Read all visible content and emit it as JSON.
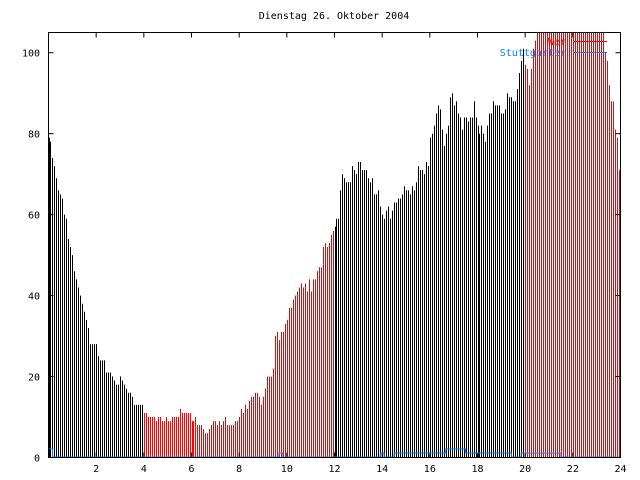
{
  "chart_data": {
    "type": "bar",
    "title": "Dienstag 26. Oktober 2004",
    "xlabel": "",
    "ylabel": "",
    "xlim": [
      0,
      24
    ],
    "ylim": [
      0,
      105
    ],
    "x_ticks": [
      "2",
      "4",
      "6",
      "8",
      "10",
      "12",
      "14",
      "16",
      "18",
      "20",
      "22",
      "24"
    ],
    "y_ticks": [
      "0",
      "20",
      "40",
      "60",
      "80",
      "100"
    ],
    "grid": false,
    "legend_position": "top-right",
    "bar_interval_minutes": 5,
    "series": [
      {
        "name": "Wer",
        "color": "#ff0000",
        "values": [
          79,
          78,
          74,
          72,
          69,
          66,
          65,
          64,
          60,
          59,
          54,
          52,
          50,
          46,
          44,
          42,
          40,
          38,
          36,
          34,
          32,
          28,
          28,
          28,
          28,
          25,
          24,
          24,
          24,
          21,
          21,
          21,
          20,
          19,
          18,
          18,
          20,
          19,
          18,
          17,
          16,
          16,
          15,
          13,
          13,
          13,
          13,
          13,
          11,
          11,
          10,
          10,
          10,
          10,
          9,
          10,
          10,
          9,
          9,
          10,
          9,
          9,
          10,
          10,
          10,
          10,
          12,
          11,
          11,
          11,
          11,
          11,
          9,
          9,
          10,
          8,
          8,
          8,
          7,
          6,
          6,
          7,
          8,
          9,
          9,
          8,
          9,
          8,
          9,
          10,
          8,
          8,
          8,
          8,
          9,
          9,
          10,
          12,
          11,
          13,
          12,
          14,
          15,
          15,
          16,
          16,
          15,
          13,
          15,
          17,
          20,
          20,
          20,
          22,
          30,
          31,
          29,
          31,
          31,
          33,
          34,
          37,
          37,
          39,
          40,
          41,
          42,
          43,
          42,
          43,
          41,
          44,
          41,
          44,
          44,
          46,
          47,
          47,
          52,
          53,
          52,
          53,
          55,
          56,
          57,
          59,
          59,
          66,
          70,
          69,
          68,
          68,
          68,
          72,
          71,
          70,
          73,
          73,
          71,
          71,
          71,
          69,
          68,
          69,
          65,
          65,
          66,
          62,
          60,
          59,
          61,
          62,
          59,
          61,
          63,
          63,
          64,
          64,
          65,
          67,
          66,
          66,
          65,
          67,
          66,
          68,
          72,
          71,
          71,
          70,
          73,
          72,
          79,
          80,
          82,
          85,
          87,
          86,
          81,
          77,
          80,
          82,
          89,
          90,
          87,
          88,
          85,
          84,
          81,
          84,
          84,
          83,
          84,
          84,
          88,
          84,
          82,
          80,
          82,
          80,
          78,
          82,
          85,
          85,
          88,
          87,
          87,
          87,
          85,
          85,
          86,
          90,
          89,
          89,
          88,
          88,
          91,
          95,
          98,
          101,
          97,
          96,
          92,
          96,
          101,
          103,
          110,
          110,
          110,
          110,
          110,
          110,
          110,
          110,
          110,
          110,
          110,
          110,
          110,
          110,
          110,
          110,
          110,
          110,
          110,
          110,
          110,
          110,
          110,
          110,
          110,
          110,
          110,
          110,
          110,
          110,
          110,
          110,
          110,
          110,
          100,
          98,
          92,
          88,
          88,
          81,
          79,
          71
        ],
        "color_ranges": [
          {
            "from": 0,
            "to": 4,
            "color": "#000000"
          },
          {
            "from": 4,
            "to": 12,
            "color": "#ff0000"
          },
          {
            "from": 12,
            "to": 20,
            "color": "#000000"
          },
          {
            "from": 20,
            "to": 24,
            "color": "#ff0000"
          }
        ]
      },
      {
        "name": "Stuttgarter",
        "color": "#0080ff",
        "type": "step",
        "points": [
          [
            0,
            2
          ],
          [
            0.17,
            0
          ],
          [
            9.67,
            1
          ],
          [
            9.83,
            0
          ],
          [
            13.92,
            1
          ],
          [
            14.08,
            0
          ],
          [
            14.5,
            1
          ],
          [
            16.67,
            2
          ],
          [
            17.5,
            1
          ],
          [
            19.42,
            0
          ],
          [
            19.83,
            1
          ],
          [
            21.5,
            0
          ],
          [
            24,
            0
          ]
        ]
      }
    ]
  }
}
